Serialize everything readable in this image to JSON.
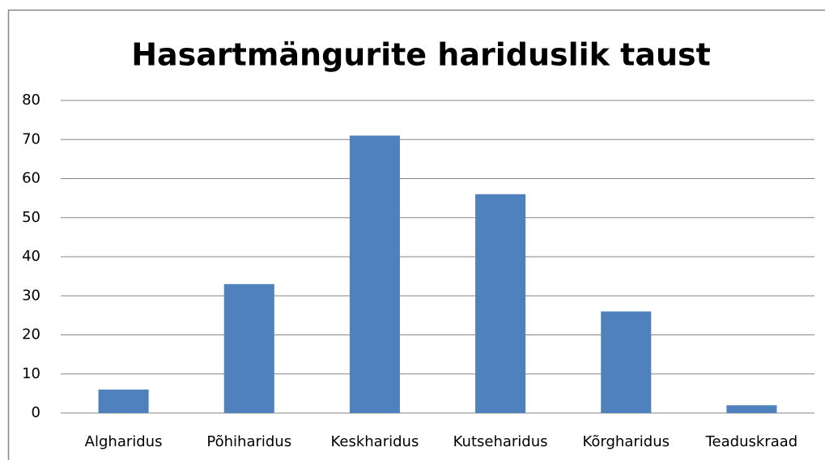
{
  "chart_data": {
    "type": "bar",
    "title": "Hasartmängurite hariduslik taust",
    "categories": [
      "Algharidus",
      "Põhiharidus",
      "Keskharidus",
      "Kutseharidus",
      "Kõrgharidus",
      "Teaduskraad"
    ],
    "values": [
      6,
      33,
      71,
      56,
      26,
      2
    ],
    "color": "#4f81bd",
    "ylim": [
      0,
      80
    ],
    "yticks": [
      0,
      10,
      20,
      30,
      40,
      50,
      60,
      70,
      80
    ],
    "grid": true
  }
}
